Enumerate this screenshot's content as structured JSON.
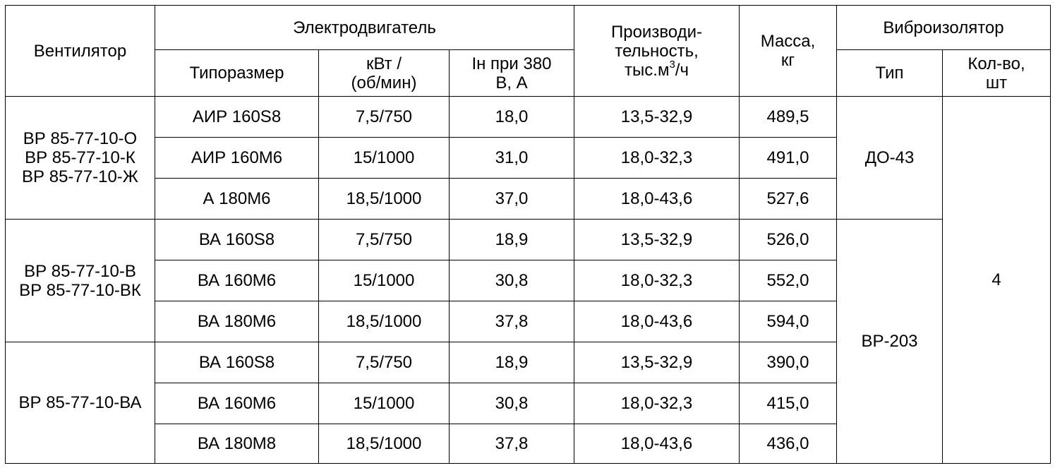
{
  "headers": {
    "fan": "Вентилятор",
    "motor": "Электродвигатель",
    "motor_type": "Типоразмер",
    "power_line1": "кВт /",
    "power_line2": "(об/мин)",
    "current_line1": "Iн при 380",
    "current_line2": "В, А",
    "capacity_line1": "Производи-",
    "capacity_line2": "тельность,",
    "capacity_line3_pre": "тыс.м",
    "capacity_line3_sup": "3",
    "capacity_line3_post": "/ч",
    "mass_line1": "Масса,",
    "mass_line2": "кг",
    "isolator": "Виброизолятор",
    "isolator_type": "Тип",
    "count_line1": "Кол-во,",
    "count_line2": "шт"
  },
  "groups": [
    {
      "fans": [
        "ВР 85-77-10-О",
        "ВР 85-77-10-К",
        "ВР 85-77-10-Ж"
      ],
      "isolator_type": "ДО-43",
      "rows": [
        {
          "motor": "АИР 160S8",
          "power": "7,5/750",
          "current": "18,0",
          "capacity": "13,5-32,9",
          "mass": "489,5"
        },
        {
          "motor": "АИР 160М6",
          "power": "15/1000",
          "current": "31,0",
          "capacity": "18,0-32,3",
          "mass": "491,0"
        },
        {
          "motor": "А 180М6",
          "power": "18,5/1000",
          "current": "37,0",
          "capacity": "18,0-43,6",
          "mass": "527,6"
        }
      ]
    },
    {
      "fans": [
        "ВР 85-77-10-В",
        "ВР 85-77-10-ВК"
      ],
      "isolator_type": "ВР-203",
      "rows": [
        {
          "motor": "ВА 160S8",
          "power": "7,5/750",
          "current": "18,9",
          "capacity": "13,5-32,9",
          "mass": "526,0"
        },
        {
          "motor": "ВА 160М6",
          "power": "15/1000",
          "current": "30,8",
          "capacity": "18,0-32,3",
          "mass": "552,0"
        },
        {
          "motor": "ВА 180М6",
          "power": "18,5/1000",
          "current": "37,8",
          "capacity": "18,0-43,6",
          "mass": "594,0"
        }
      ]
    },
    {
      "fans": [
        "ВР 85-77-10-ВА"
      ],
      "rows": [
        {
          "motor": "ВА 160S8",
          "power": "7,5/750",
          "current": "18,9",
          "capacity": "13,5-32,9",
          "mass": "390,0"
        },
        {
          "motor": "ВА 160М6",
          "power": "15/1000",
          "current": "30,8",
          "capacity": "18,0-32,3",
          "mass": "415,0"
        },
        {
          "motor": "ВА 180М8",
          "power": "18,5/1000",
          "current": "37,8",
          "capacity": "18,0-43,6",
          "mass": "436,0"
        }
      ]
    }
  ],
  "isolator_count": "4"
}
